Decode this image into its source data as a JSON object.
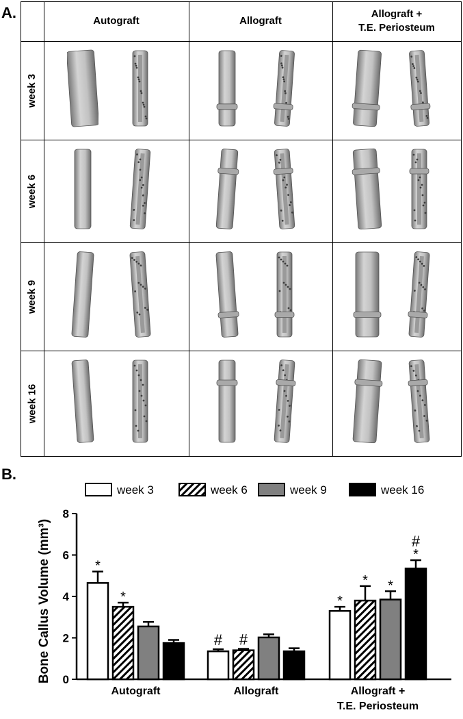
{
  "panel_a": {
    "label": "A.",
    "columns": [
      {
        "label": "Autograft"
      },
      {
        "label": "Allograft"
      },
      {
        "label_line1": "Allograft +",
        "label_line2": "T.E. Periosteum"
      }
    ],
    "rows": [
      "week 3",
      "week 6",
      "week 9",
      "week 16"
    ]
  },
  "panel_b": {
    "label": "B.",
    "legend": [
      {
        "label": "week 3",
        "fill": "white"
      },
      {
        "label": "week 6",
        "fill": "hatched"
      },
      {
        "label": "week 9",
        "fill": "gray"
      },
      {
        "label": "week 16",
        "fill": "black"
      }
    ]
  },
  "chart_data": {
    "type": "bar",
    "ylabel": "Bone Callus Volume (mm³)",
    "ylim": [
      0,
      8
    ],
    "yticks": [
      0,
      2,
      4,
      6,
      8
    ],
    "categories": [
      "Autograft",
      "Allograft",
      "Allograft +\nT.E. Periosteum"
    ],
    "series": [
      {
        "name": "week 3",
        "values": [
          4.65,
          1.35,
          3.3
        ],
        "errors": [
          0.55,
          0.1,
          0.2
        ],
        "markers": [
          "*",
          "#",
          "*"
        ],
        "color": "#ffffff"
      },
      {
        "name": "week 6",
        "values": [
          3.5,
          1.4,
          3.8
        ],
        "errors": [
          0.2,
          0.07,
          0.7
        ],
        "markers": [
          "*",
          "#",
          "*"
        ],
        "color": "#ffffff"
      },
      {
        "name": "week 9",
        "values": [
          2.55,
          2.02,
          3.85
        ],
        "errors": [
          0.22,
          0.15,
          0.4
        ],
        "markers": [
          "",
          "",
          "*"
        ],
        "color": "#808080"
      },
      {
        "name": "week 16",
        "values": [
          1.75,
          1.35,
          5.35
        ],
        "errors": [
          0.15,
          0.15,
          0.4
        ],
        "markers": [
          "",
          "",
          "#*"
        ],
        "color": "#000000"
      }
    ],
    "grid": false,
    "legend_position": "top"
  }
}
